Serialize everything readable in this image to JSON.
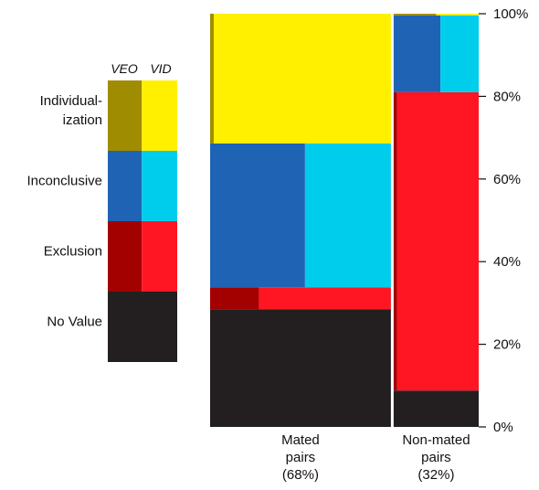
{
  "colors": {
    "individualization_veo": "#a08c00",
    "individualization_vid": "#fff000",
    "inconclusive_veo": "#1f63b5",
    "inconclusive_vid": "#00cdec",
    "exclusion_veo": "#a30000",
    "exclusion_vid": "#ff1622",
    "no_value": "#231f20",
    "separator": "#ffffff"
  },
  "legend": {
    "col_headers": [
      "VEO",
      "VID"
    ],
    "rows": [
      {
        "key": "individualization",
        "label_lines": [
          "Individual-",
          "ization"
        ]
      },
      {
        "key": "inconclusive",
        "label_lines": [
          "Inconclusive"
        ]
      },
      {
        "key": "exclusion",
        "label_lines": [
          "Exclusion"
        ]
      },
      {
        "key": "no_value",
        "label_lines": [
          "No Value"
        ]
      }
    ]
  },
  "chart_data": {
    "type": "mosaic",
    "y_axis": {
      "ticks": [
        0,
        20,
        40,
        60,
        80,
        100
      ],
      "tick_labels": [
        "0%",
        "20%",
        "40%",
        "60%",
        "80%",
        "100%"
      ],
      "range": [
        0,
        100
      ],
      "position": "right"
    },
    "columns": [
      {
        "key": "mated",
        "label_lines": [
          "Mated",
          "pairs",
          "(68%)"
        ],
        "width_pct": 68,
        "segments": [
          {
            "category": "no_value",
            "from": 0,
            "to": 28.5,
            "veo_split": 1.0
          },
          {
            "category": "exclusion",
            "from": 28.5,
            "to": 33.8,
            "veo_split": 0.27
          },
          {
            "category": "inconclusive",
            "from": 33.8,
            "to": 68.6,
            "veo_split": 0.525
          },
          {
            "category": "individualization",
            "from": 68.6,
            "to": 100,
            "veo_split": 0.02
          }
        ]
      },
      {
        "key": "nonmated",
        "label_lines": [
          "Non-mated",
          "pairs",
          "(32%)"
        ],
        "width_pct": 32,
        "segments": [
          {
            "category": "no_value",
            "from": 0,
            "to": 8.8,
            "veo_split": 1.0
          },
          {
            "category": "exclusion",
            "from": 8.8,
            "to": 81.0,
            "veo_split": 0.04
          },
          {
            "category": "inconclusive",
            "from": 81.0,
            "to": 99.6,
            "veo_split": 0.55
          },
          {
            "category": "individualization",
            "from": 99.6,
            "to": 100,
            "veo_split": 0.5
          }
        ]
      }
    ]
  }
}
